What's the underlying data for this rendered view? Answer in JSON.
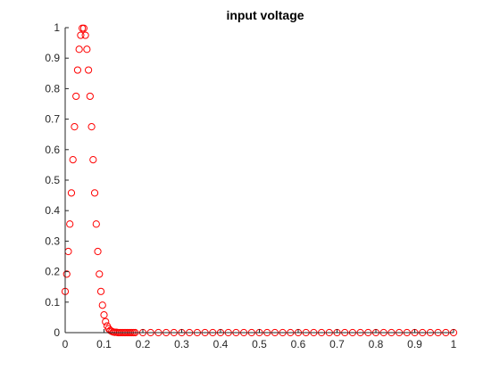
{
  "chart_data": {
    "type": "scatter",
    "title": "input voltage",
    "xlabel": "",
    "ylabel": "",
    "xlim": [
      0,
      1
    ],
    "ylim": [
      0,
      1
    ],
    "x_ticks": [
      0,
      0.1,
      0.2,
      0.3,
      0.4,
      0.5,
      0.6,
      0.7,
      0.8,
      0.9,
      1
    ],
    "x_tick_labels": [
      "0",
      "0.1",
      "0.2",
      "0.3",
      "0.4",
      "0.5",
      "0.6",
      "0.7",
      "0.8",
      "0.9",
      "1"
    ],
    "y_ticks": [
      0,
      0.1,
      0.2,
      0.3,
      0.4,
      0.5,
      0.6,
      0.7,
      0.8,
      0.9,
      1
    ],
    "y_tick_labels": [
      "0",
      "0.1",
      "0.2",
      "0.3",
      "0.4",
      "0.5",
      "0.6",
      "0.7",
      "0.8",
      "0.9",
      "1"
    ],
    "grid": false,
    "marker": "open-circle",
    "series_color": "#ff0000",
    "axis_color": "#262626",
    "series": [
      {
        "name": "",
        "x": [
          0,
          0.004,
          0.008,
          0.012,
          0.016,
          0.02,
          0.024,
          0.028,
          0.032,
          0.036,
          0.04,
          0.044,
          0.048,
          0.052,
          0.056,
          0.06,
          0.064,
          0.068,
          0.072,
          0.076,
          0.08,
          0.084,
          0.088,
          0.092,
          0.096,
          0.1,
          0.104,
          0.108,
          0.112,
          0.116,
          0.12,
          0.124,
          0.128,
          0.132,
          0.136,
          0.14,
          0.144,
          0.148,
          0.152,
          0.156,
          0.16,
          0.164,
          0.168,
          0.172,
          0.176,
          0.18,
          0.2,
          0.22,
          0.24,
          0.26,
          0.28,
          0.3,
          0.32,
          0.34,
          0.36,
          0.38,
          0.4,
          0.42,
          0.44,
          0.46,
          0.48,
          0.5,
          0.52,
          0.54,
          0.56,
          0.58,
          0.6,
          0.62,
          0.64,
          0.66,
          0.68,
          0.7,
          0.72,
          0.74,
          0.76,
          0.78,
          0.8,
          0.82,
          0.84,
          0.86,
          0.88,
          0.9,
          0.92,
          0.94,
          0.96,
          0.98,
          1
        ],
        "y": [
          0.135,
          0.192,
          0.266,
          0.356,
          0.458,
          0.567,
          0.675,
          0.775,
          0.861,
          0.929,
          0.975,
          0.998,
          0.998,
          0.975,
          0.929,
          0.861,
          0.775,
          0.675,
          0.567,
          0.458,
          0.356,
          0.266,
          0.192,
          0.135,
          0.09,
          0.058,
          0.036,
          0.022,
          0.013,
          0.007,
          0.004,
          0.002,
          0.001,
          0.001,
          0,
          0,
          0,
          0,
          0,
          0,
          0,
          0,
          0,
          0,
          0,
          0,
          0,
          0,
          0,
          0,
          0,
          0,
          0,
          0,
          0,
          0,
          0,
          0,
          0,
          0,
          0,
          0,
          0,
          0,
          0,
          0,
          0,
          0,
          0,
          0,
          0,
          0,
          0,
          0,
          0,
          0,
          0,
          0,
          0,
          0,
          0,
          0,
          0,
          0,
          0,
          0,
          0
        ]
      }
    ]
  }
}
